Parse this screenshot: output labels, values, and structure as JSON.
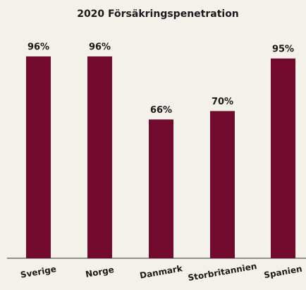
{
  "chart_data": {
    "type": "bar",
    "title": "2020 Försäkringspenetration",
    "categories": [
      "Sverige",
      "Norge",
      "Danmark",
      "Storbritannien",
      "Spanien"
    ],
    "values": [
      96,
      96,
      66,
      70,
      95
    ],
    "value_labels": [
      "96%",
      "96%",
      "66%",
      "70%",
      "95%"
    ],
    "color": "#720a2e",
    "ylim": [
      0,
      100
    ]
  }
}
